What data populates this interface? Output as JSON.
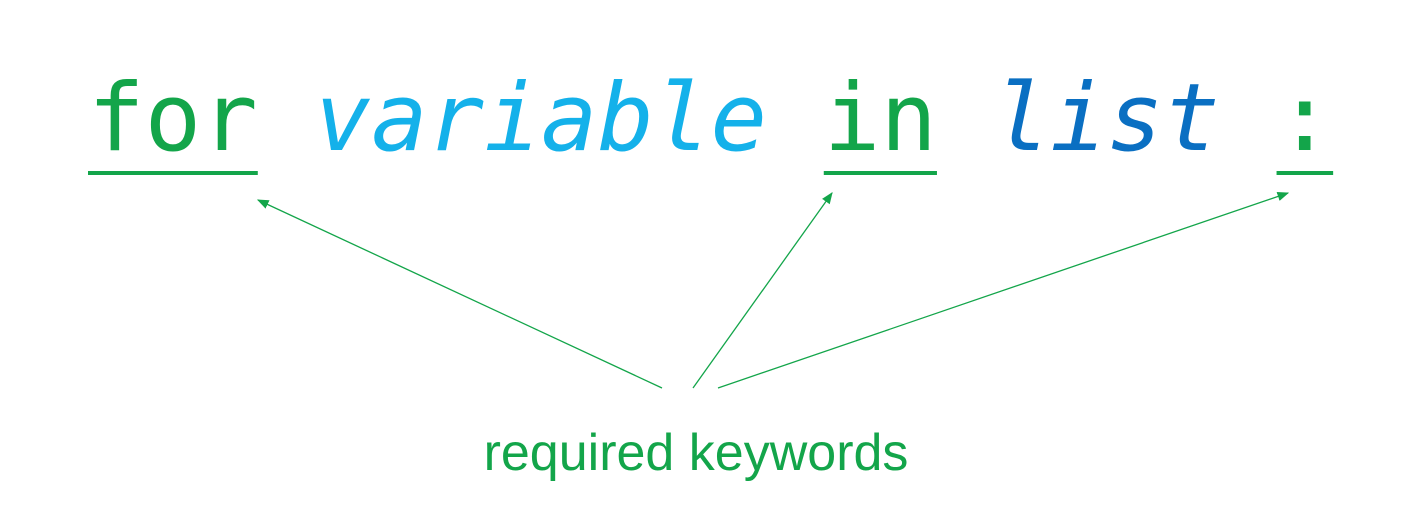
{
  "code": {
    "tokens": [
      {
        "text": "for",
        "color": "#13a54a",
        "italic": false,
        "underline": true
      },
      {
        "text": "variable",
        "color": "#14b1ea",
        "italic": true,
        "underline": false
      },
      {
        "text": "in",
        "color": "#13a54a",
        "italic": false,
        "underline": true
      },
      {
        "text": "list",
        "color": "#0a6fc2",
        "italic": true,
        "underline": false
      },
      {
        "text": ":",
        "color": "#13a54a",
        "italic": false,
        "underline": true
      }
    ]
  },
  "annotation": {
    "text": "required keywords",
    "color": "#13a54a"
  }
}
